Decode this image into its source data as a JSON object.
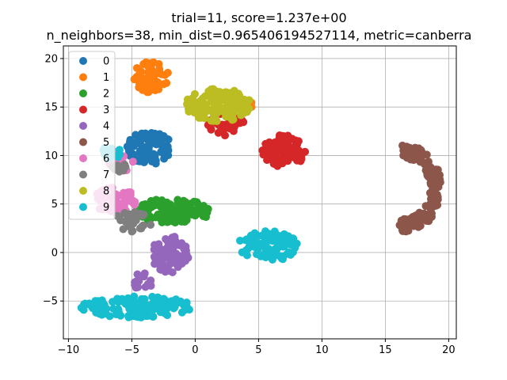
{
  "chart_data": {
    "type": "scatter",
    "title_line1": "trial=11, score=1.237e+00",
    "title_line2": "n_neighbors=38, min_dist=0.965406194527114, metric=canberra",
    "xlabel": "",
    "ylabel": "",
    "xlim": [
      -10.4,
      20.6
    ],
    "ylim": [
      -8.9,
      21.3
    ],
    "xticks": [
      -10,
      -5,
      0,
      5,
      10,
      15,
      20
    ],
    "yticks": [
      -5,
      0,
      5,
      10,
      15,
      20
    ],
    "grid": true,
    "legend_position": "upper-left",
    "series": [
      {
        "name": "0",
        "color": "#1f77b4",
        "clusters": [
          {
            "cx": -3.6,
            "cy": 10.8,
            "rx": 1.8,
            "ry": 1.7,
            "n": 90
          }
        ]
      },
      {
        "name": "1",
        "color": "#ff7f0e",
        "clusters": [
          {
            "cx": -3.5,
            "cy": 18.1,
            "rx": 1.4,
            "ry": 1.6,
            "n": 60
          },
          {
            "cx": 3.8,
            "cy": 15.1,
            "rx": 0.8,
            "ry": 0.6,
            "n": 10
          }
        ]
      },
      {
        "name": "2",
        "color": "#2ca02c",
        "clusters": [
          {
            "cx": -1.7,
            "cy": 4.3,
            "rx": 3.0,
            "ry": 1.3,
            "n": 110
          }
        ]
      },
      {
        "name": "3",
        "color": "#d62728",
        "clusters": [
          {
            "cx": 7.0,
            "cy": 10.5,
            "rx": 1.7,
            "ry": 1.7,
            "n": 100
          },
          {
            "cx": 2.4,
            "cy": 13.2,
            "rx": 1.5,
            "ry": 1.2,
            "n": 35
          }
        ]
      },
      {
        "name": "4",
        "color": "#9467bd",
        "clusters": [
          {
            "cx": -2.0,
            "cy": -0.2,
            "rx": 1.5,
            "ry": 1.9,
            "n": 80
          },
          {
            "cx": -4.2,
            "cy": -3.0,
            "rx": 0.9,
            "ry": 0.9,
            "n": 15
          }
        ]
      },
      {
        "name": "5",
        "color": "#8c564b",
        "clusters": [
          {
            "cx": 16.5,
            "cy": 6.6,
            "rx": 2.7,
            "ry": 4.1,
            "n": 150,
            "shape": "arc"
          }
        ]
      },
      {
        "name": "6",
        "color": "#e377c2",
        "clusters": [
          {
            "cx": -6.3,
            "cy": 5.4,
            "rx": 1.8,
            "ry": 1.3,
            "n": 70
          },
          {
            "cx": -5.9,
            "cy": 9.4,
            "rx": 1.1,
            "ry": 1.1,
            "n": 25
          }
        ]
      },
      {
        "name": "7",
        "color": "#7f7f7f",
        "clusters": [
          {
            "cx": -5.0,
            "cy": 3.0,
            "rx": 1.6,
            "ry": 1.3,
            "n": 30
          },
          {
            "cx": -6.0,
            "cy": 8.7,
            "rx": 0.6,
            "ry": 0.6,
            "n": 10
          }
        ]
      },
      {
        "name": "8",
        "color": "#bcbd22",
        "clusters": [
          {
            "cx": 1.8,
            "cy": 15.2,
            "rx": 2.6,
            "ry": 1.7,
            "n": 140
          }
        ]
      },
      {
        "name": "9",
        "color": "#17becf",
        "clusters": [
          {
            "cx": 5.8,
            "cy": 0.7,
            "rx": 2.4,
            "ry": 1.6,
            "n": 90
          },
          {
            "cx": -4.6,
            "cy": -5.6,
            "rx": 4.4,
            "ry": 1.1,
            "n": 130
          },
          {
            "cx": -6.6,
            "cy": 10.3,
            "rx": 0.8,
            "ry": 0.7,
            "n": 15
          }
        ]
      }
    ]
  }
}
